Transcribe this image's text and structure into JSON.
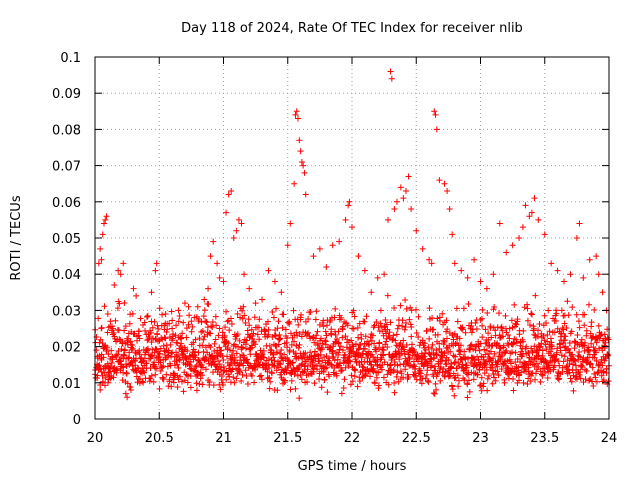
{
  "chart_data": {
    "type": "scatter",
    "title": "Day 118 of 2024, Rate Of TEC Index for receiver nlib",
    "xlabel": "GPS time / hours",
    "ylabel": "ROTI / TECUs",
    "xlim": [
      20,
      24
    ],
    "ylim": [
      0,
      0.1
    ],
    "xticks": [
      20,
      20.5,
      21,
      21.5,
      22,
      22.5,
      23,
      23.5,
      24
    ],
    "xtick_labels": [
      "20",
      "20.5",
      "21",
      "21.5",
      "22",
      "22.5",
      "23",
      "23.5",
      "24"
    ],
    "yticks": [
      0,
      0.01,
      0.02,
      0.03,
      0.04,
      0.05,
      0.06,
      0.07,
      0.08,
      0.09,
      0.1
    ],
    "ytick_labels": [
      "0",
      "0.01",
      "0.02",
      "0.03",
      "0.04",
      "0.05",
      "0.06",
      "0.07",
      "0.08",
      "0.09",
      "0.1"
    ],
    "grid": true,
    "marker": "+",
    "color": "#ff0000",
    "series": [
      {
        "name": "ROTI",
        "points": [
          [
            20.02,
            0.012
          ],
          [
            20.03,
            0.043
          ],
          [
            20.04,
            0.047
          ],
          [
            20.05,
            0.044
          ],
          [
            20.06,
            0.051
          ],
          [
            20.07,
            0.054
          ],
          [
            20.08,
            0.055
          ],
          [
            20.09,
            0.056
          ],
          [
            20.1,
            0.029
          ],
          [
            20.12,
            0.027
          ],
          [
            20.15,
            0.037
          ],
          [
            20.18,
            0.041
          ],
          [
            20.2,
            0.04
          ],
          [
            20.22,
            0.043
          ],
          [
            20.24,
            0.007
          ],
          [
            20.25,
            0.006
          ],
          [
            20.28,
            0.008
          ],
          [
            20.3,
            0.036
          ],
          [
            20.32,
            0.034
          ],
          [
            20.35,
            0.011
          ],
          [
            20.4,
            0.014
          ],
          [
            20.44,
            0.035
          ],
          [
            20.47,
            0.041
          ],
          [
            20.48,
            0.043
          ],
          [
            20.5,
            0.018
          ],
          [
            20.55,
            0.029
          ],
          [
            20.6,
            0.025
          ],
          [
            20.65,
            0.03
          ],
          [
            20.7,
            0.032
          ],
          [
            20.75,
            0.027
          ],
          [
            20.8,
            0.031
          ],
          [
            20.85,
            0.033
          ],
          [
            20.88,
            0.036
          ],
          [
            20.9,
            0.045
          ],
          [
            20.92,
            0.049
          ],
          [
            20.95,
            0.043
          ],
          [
            20.97,
            0.039
          ],
          [
            21.0,
            0.038
          ],
          [
            21.02,
            0.057
          ],
          [
            21.04,
            0.062
          ],
          [
            21.06,
            0.063
          ],
          [
            21.08,
            0.05
          ],
          [
            21.1,
            0.052
          ],
          [
            21.12,
            0.055
          ],
          [
            21.14,
            0.054
          ],
          [
            21.16,
            0.04
          ],
          [
            21.2,
            0.036
          ],
          [
            21.25,
            0.032
          ],
          [
            21.3,
            0.033
          ],
          [
            21.35,
            0.041
          ],
          [
            21.4,
            0.038
          ],
          [
            21.45,
            0.035
          ],
          [
            21.5,
            0.048
          ],
          [
            21.52,
            0.054
          ],
          [
            21.55,
            0.065
          ],
          [
            21.56,
            0.084
          ],
          [
            21.57,
            0.085
          ],
          [
            21.58,
            0.083
          ],
          [
            21.59,
            0.077
          ],
          [
            21.6,
            0.074
          ],
          [
            21.61,
            0.071
          ],
          [
            21.62,
            0.07
          ],
          [
            21.63,
            0.068
          ],
          [
            21.64,
            0.062
          ],
          [
            21.7,
            0.045
          ],
          [
            21.75,
            0.047
          ],
          [
            21.8,
            0.042
          ],
          [
            21.85,
            0.048
          ],
          [
            21.9,
            0.049
          ],
          [
            21.95,
            0.055
          ],
          [
            21.97,
            0.059
          ],
          [
            21.98,
            0.06
          ],
          [
            22.0,
            0.053
          ],
          [
            22.05,
            0.045
          ],
          [
            22.1,
            0.041
          ],
          [
            22.15,
            0.035
          ],
          [
            22.2,
            0.039
          ],
          [
            22.25,
            0.04
          ],
          [
            22.28,
            0.055
          ],
          [
            22.3,
            0.096
          ],
          [
            22.31,
            0.094
          ],
          [
            22.33,
            0.058
          ],
          [
            22.35,
            0.06
          ],
          [
            22.38,
            0.064
          ],
          [
            22.4,
            0.061
          ],
          [
            22.42,
            0.063
          ],
          [
            22.44,
            0.067
          ],
          [
            22.46,
            0.058
          ],
          [
            22.5,
            0.052
          ],
          [
            22.55,
            0.047
          ],
          [
            22.6,
            0.044
          ],
          [
            22.62,
            0.043
          ],
          [
            22.64,
            0.085
          ],
          [
            22.65,
            0.084
          ],
          [
            22.66,
            0.08
          ],
          [
            22.68,
            0.066
          ],
          [
            22.72,
            0.065
          ],
          [
            22.74,
            0.063
          ],
          [
            22.76,
            0.058
          ],
          [
            22.78,
            0.051
          ],
          [
            22.8,
            0.043
          ],
          [
            22.85,
            0.041
          ],
          [
            22.9,
            0.039
          ],
          [
            22.95,
            0.044
          ],
          [
            23.0,
            0.038
          ],
          [
            23.05,
            0.036
          ],
          [
            23.1,
            0.04
          ],
          [
            23.15,
            0.054
          ],
          [
            23.2,
            0.046
          ],
          [
            23.25,
            0.048
          ],
          [
            23.3,
            0.05
          ],
          [
            23.33,
            0.053
          ],
          [
            23.35,
            0.059
          ],
          [
            23.38,
            0.056
          ],
          [
            23.4,
            0.057
          ],
          [
            23.42,
            0.061
          ],
          [
            23.45,
            0.055
          ],
          [
            23.5,
            0.051
          ],
          [
            23.55,
            0.043
          ],
          [
            23.6,
            0.041
          ],
          [
            23.65,
            0.038
          ],
          [
            23.7,
            0.04
          ],
          [
            23.75,
            0.05
          ],
          [
            23.77,
            0.054
          ],
          [
            23.8,
            0.039
          ],
          [
            23.85,
            0.044
          ],
          [
            23.9,
            0.045
          ],
          [
            23.92,
            0.04
          ],
          [
            23.95,
            0.035
          ],
          [
            23.98,
            0.03
          ]
        ],
        "band": {
          "x_from": 20.0,
          "x_to": 24.0,
          "count": 2200,
          "y_min": 0.006,
          "y_mode": 0.017,
          "y_max": 0.036
        }
      }
    ]
  }
}
